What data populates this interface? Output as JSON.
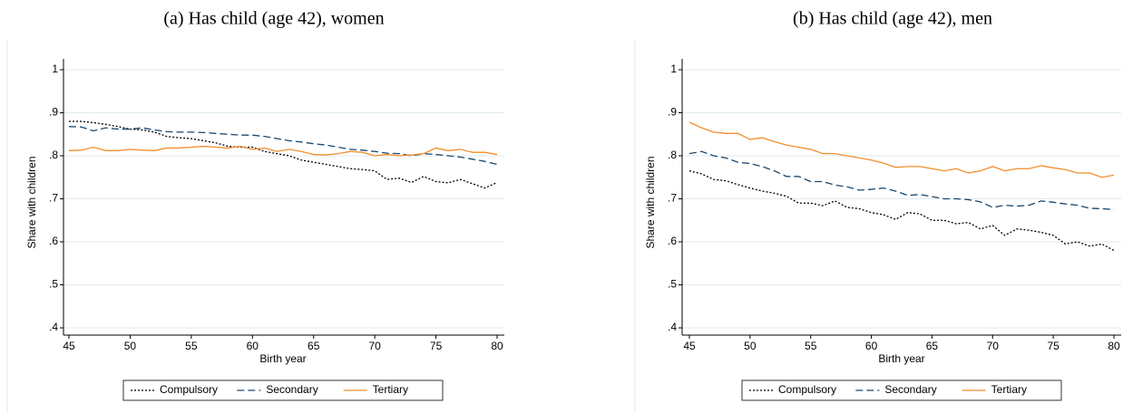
{
  "chart_data": [
    {
      "type": "line",
      "title": "(a) Has child (age 42), women",
      "xlabel": "Birth year",
      "ylabel": "Share with children",
      "x": [
        45,
        46,
        47,
        48,
        49,
        50,
        51,
        52,
        53,
        54,
        55,
        56,
        57,
        58,
        59,
        60,
        61,
        62,
        63,
        64,
        65,
        66,
        67,
        68,
        69,
        70,
        71,
        72,
        73,
        74,
        75,
        76,
        77,
        78,
        79,
        80
      ],
      "xlim": [
        45,
        80
      ],
      "xticks": [
        45,
        50,
        55,
        60,
        65,
        70,
        75,
        80
      ],
      "ylim": [
        0.4,
        1
      ],
      "yticks": [
        {
          "value": 0.4,
          "label": ".4"
        },
        {
          "value": 0.5,
          "label": ".5"
        },
        {
          "value": 0.6,
          "label": ".6"
        },
        {
          "value": 0.7,
          "label": ".7"
        },
        {
          "value": 0.8,
          "label": ".8"
        },
        {
          "value": 0.9,
          "label": ".9"
        },
        1
      ],
      "grid": true,
      "legend": "bottom",
      "series": [
        {
          "name": "Compulsory",
          "color": "#000000",
          "dash": "dotted",
          "values": [
            0.88,
            0.88,
            0.877,
            0.873,
            0.868,
            0.862,
            0.86,
            0.855,
            0.845,
            0.842,
            0.84,
            0.835,
            0.83,
            0.822,
            0.82,
            0.82,
            0.81,
            0.805,
            0.8,
            0.79,
            0.785,
            0.78,
            0.775,
            0.77,
            0.768,
            0.765,
            0.745,
            0.748,
            0.738,
            0.752,
            0.74,
            0.737,
            0.745,
            0.735,
            0.725,
            0.738
          ]
        },
        {
          "name": "Secondary",
          "color": "#1a476f",
          "dash": "dashed",
          "values": [
            0.868,
            0.867,
            0.858,
            0.865,
            0.862,
            0.862,
            0.865,
            0.86,
            0.856,
            0.855,
            0.855,
            0.854,
            0.852,
            0.85,
            0.848,
            0.848,
            0.845,
            0.84,
            0.835,
            0.832,
            0.828,
            0.825,
            0.82,
            0.815,
            0.813,
            0.81,
            0.806,
            0.805,
            0.8,
            0.805,
            0.803,
            0.8,
            0.797,
            0.792,
            0.787,
            0.78
          ]
        },
        {
          "name": "Tertiary",
          "color": "#f28e2b",
          "dash": "solid",
          "values": [
            0.812,
            0.813,
            0.82,
            0.812,
            0.812,
            0.815,
            0.813,
            0.812,
            0.818,
            0.818,
            0.82,
            0.822,
            0.82,
            0.818,
            0.822,
            0.815,
            0.818,
            0.81,
            0.815,
            0.81,
            0.803,
            0.802,
            0.805,
            0.81,
            0.808,
            0.8,
            0.803,
            0.8,
            0.802,
            0.805,
            0.818,
            0.812,
            0.815,
            0.808,
            0.808,
            0.803
          ]
        }
      ]
    },
    {
      "type": "line",
      "title": "(b) Has child (age 42), men",
      "xlabel": "Birth year",
      "ylabel": "Share with children",
      "x": [
        45,
        46,
        47,
        48,
        49,
        50,
        51,
        52,
        53,
        54,
        55,
        56,
        57,
        58,
        59,
        60,
        61,
        62,
        63,
        64,
        65,
        66,
        67,
        68,
        69,
        70,
        71,
        72,
        73,
        74,
        75,
        76,
        77,
        78,
        79,
        80
      ],
      "xlim": [
        45,
        80
      ],
      "xticks": [
        45,
        50,
        55,
        60,
        65,
        70,
        75,
        80
      ],
      "ylim": [
        0.4,
        1
      ],
      "yticks": [
        {
          "value": 0.4,
          "label": ".4"
        },
        {
          "value": 0.5,
          "label": ".5"
        },
        {
          "value": 0.6,
          "label": ".6"
        },
        {
          "value": 0.7,
          "label": ".7"
        },
        {
          "value": 0.8,
          "label": ".8"
        },
        {
          "value": 0.9,
          "label": ".9"
        },
        1
      ],
      "grid": true,
      "legend": "bottom",
      "series": [
        {
          "name": "Compulsory",
          "color": "#000000",
          "dash": "dotted",
          "values": [
            0.765,
            0.758,
            0.745,
            0.742,
            0.733,
            0.725,
            0.718,
            0.713,
            0.706,
            0.69,
            0.69,
            0.684,
            0.695,
            0.68,
            0.677,
            0.668,
            0.663,
            0.652,
            0.668,
            0.665,
            0.65,
            0.65,
            0.642,
            0.645,
            0.63,
            0.638,
            0.615,
            0.63,
            0.627,
            0.622,
            0.615,
            0.595,
            0.6,
            0.59,
            0.595,
            0.58
          ]
        },
        {
          "name": "Secondary",
          "color": "#1a476f",
          "dash": "dashed",
          "values": [
            0.805,
            0.81,
            0.8,
            0.795,
            0.785,
            0.782,
            0.775,
            0.765,
            0.752,
            0.752,
            0.74,
            0.74,
            0.732,
            0.728,
            0.72,
            0.722,
            0.725,
            0.718,
            0.708,
            0.71,
            0.705,
            0.7,
            0.7,
            0.698,
            0.693,
            0.68,
            0.685,
            0.683,
            0.685,
            0.695,
            0.692,
            0.688,
            0.685,
            0.678,
            0.677,
            0.675
          ]
        },
        {
          "name": "Tertiary",
          "color": "#f28e2b",
          "dash": "solid",
          "values": [
            0.878,
            0.865,
            0.855,
            0.852,
            0.852,
            0.838,
            0.842,
            0.833,
            0.825,
            0.82,
            0.815,
            0.805,
            0.805,
            0.8,
            0.795,
            0.79,
            0.783,
            0.773,
            0.775,
            0.775,
            0.77,
            0.765,
            0.77,
            0.76,
            0.765,
            0.775,
            0.765,
            0.77,
            0.77,
            0.777,
            0.772,
            0.768,
            0.76,
            0.76,
            0.75,
            0.755
          ]
        }
      ]
    }
  ]
}
